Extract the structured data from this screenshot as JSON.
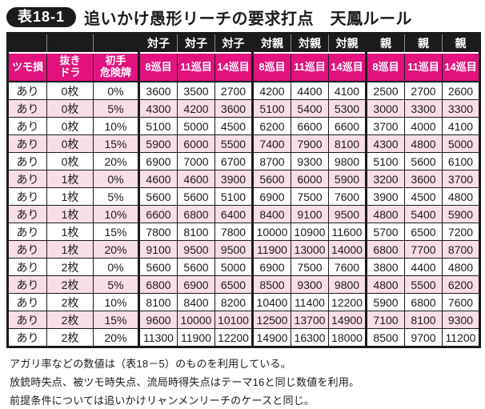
{
  "title": {
    "badge": "表18-1",
    "text": "追いかけ愚形リーチの要求打点　天鳳ルール"
  },
  "colors": {
    "header_black": "#1b1b1b",
    "header_magenta": "#e2137f",
    "row_pink": "#f8dee7",
    "row_white": "#ffffff"
  },
  "table": {
    "corner_headers": [
      "ツモ損",
      "抜き\nドラ",
      "初手\n危険牌"
    ],
    "groups": [
      "対子",
      "対親",
      "親"
    ],
    "turn_headers": [
      "8巡目",
      "11巡目",
      "14巡目"
    ],
    "rows": [
      {
        "tsumo_loss": "あり",
        "nuki_dora": "0枚",
        "risk": "0%",
        "values": [
          3600,
          3500,
          2700,
          4200,
          4400,
          4100,
          2500,
          2700,
          2600
        ]
      },
      {
        "tsumo_loss": "あり",
        "nuki_dora": "0枚",
        "risk": "5%",
        "values": [
          4300,
          4200,
          3600,
          5100,
          5400,
          5300,
          3000,
          3300,
          3300
        ]
      },
      {
        "tsumo_loss": "あり",
        "nuki_dora": "0枚",
        "risk": "10%",
        "values": [
          5100,
          5000,
          4500,
          6200,
          6600,
          6600,
          3700,
          4000,
          4100
        ]
      },
      {
        "tsumo_loss": "あり",
        "nuki_dora": "0枚",
        "risk": "15%",
        "values": [
          5900,
          6000,
          5500,
          7400,
          7900,
          8100,
          4300,
          4800,
          5000
        ]
      },
      {
        "tsumo_loss": "あり",
        "nuki_dora": "0枚",
        "risk": "20%",
        "values": [
          6900,
          7000,
          6700,
          8700,
          9300,
          9800,
          5100,
          5600,
          6100
        ]
      },
      {
        "tsumo_loss": "あり",
        "nuki_dora": "1枚",
        "risk": "0%",
        "values": [
          4600,
          4600,
          3900,
          5600,
          6000,
          5900,
          3200,
          3600,
          3700
        ]
      },
      {
        "tsumo_loss": "あり",
        "nuki_dora": "1枚",
        "risk": "5%",
        "values": [
          5600,
          5600,
          5100,
          6900,
          7500,
          7600,
          3900,
          4500,
          4800
        ]
      },
      {
        "tsumo_loss": "あり",
        "nuki_dora": "1枚",
        "risk": "10%",
        "values": [
          6600,
          6800,
          6400,
          8400,
          9100,
          9500,
          4800,
          5400,
          5900
        ]
      },
      {
        "tsumo_loss": "あり",
        "nuki_dora": "1枚",
        "risk": "15%",
        "values": [
          7800,
          8100,
          7800,
          10000,
          10900,
          11600,
          5700,
          6500,
          7200
        ]
      },
      {
        "tsumo_loss": "あり",
        "nuki_dora": "1枚",
        "risk": "20%",
        "values": [
          9100,
          9500,
          9500,
          11900,
          13000,
          14000,
          6800,
          7700,
          8700
        ]
      },
      {
        "tsumo_loss": "あり",
        "nuki_dora": "2枚",
        "risk": "0%",
        "values": [
          5600,
          5600,
          5000,
          6900,
          7500,
          7600,
          3800,
          4400,
          4800
        ]
      },
      {
        "tsumo_loss": "あり",
        "nuki_dora": "2枚",
        "risk": "5%",
        "values": [
          6800,
          6900,
          6500,
          8500,
          9300,
          9800,
          4800,
          5500,
          6200
        ]
      },
      {
        "tsumo_loss": "あり",
        "nuki_dora": "2枚",
        "risk": "10%",
        "values": [
          8100,
          8400,
          8200,
          10400,
          11400,
          12200,
          5900,
          6800,
          7600
        ]
      },
      {
        "tsumo_loss": "あり",
        "nuki_dora": "2枚",
        "risk": "15%",
        "values": [
          9600,
          10000,
          10100,
          12500,
          13700,
          14900,
          7100,
          8100,
          9300
        ]
      },
      {
        "tsumo_loss": "あり",
        "nuki_dora": "2枚",
        "risk": "20%",
        "values": [
          11300,
          11900,
          12200,
          14900,
          16300,
          18000,
          8500,
          9700,
          11200
        ]
      }
    ]
  },
  "notes": [
    "アガリ率などの数値は（表18－5）のものを利用している。",
    "放銃時失点、被ツモ時失点、流局時得失点はテーマ16と同じ数値を利用。",
    "前提条件については追いかけリャンメンリーチのケースと同じ。"
  ]
}
